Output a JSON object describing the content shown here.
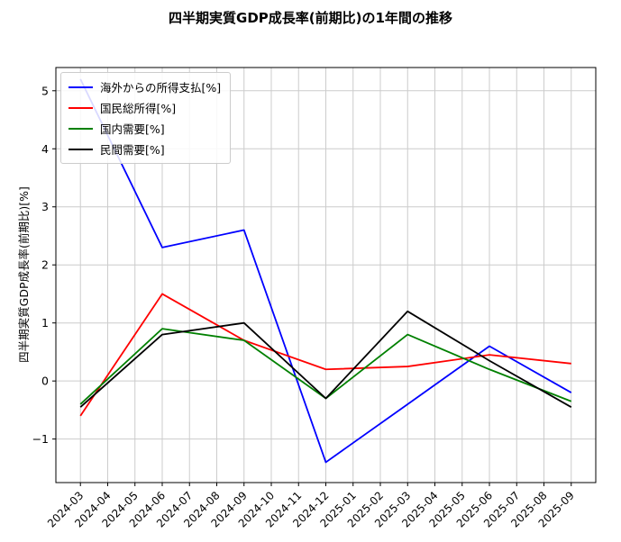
{
  "chart_data": {
    "type": "line",
    "title": "四半期実質GDP成長率(前期比)の1年間の推移",
    "xlabel": "",
    "ylabel": "四半期実質GDP成長率(前期比)[%]",
    "grid": true,
    "legend_position": "upper-left",
    "ylim": [
      -1.75,
      5.4
    ],
    "y_ticks": [
      -1,
      0,
      1,
      2,
      3,
      4,
      5
    ],
    "y_tick_labels": [
      "−1",
      "0",
      "1",
      "2",
      "3",
      "4",
      "5"
    ],
    "x_tick_labels": [
      "2024-03",
      "2024-04",
      "2024-05",
      "2024-06",
      "2024-07",
      "2024-08",
      "2024-09",
      "2024-10",
      "2024-11",
      "2024-12",
      "2025-01",
      "2025-02",
      "2025-03",
      "2025-04",
      "2025-05",
      "2025-06",
      "2025-07",
      "2025-08",
      "2025-09"
    ],
    "data_x_indices": [
      0,
      3,
      6,
      9,
      12,
      15,
      18
    ],
    "data_x_labels": [
      "2024-03",
      "2024-06",
      "2024-09",
      "2024-12",
      "2025-03",
      "2025-06",
      "2025-09"
    ],
    "series": [
      {
        "name": "海外からの所得支払[%]",
        "color": "#0000ff",
        "values": [
          5.2,
          2.3,
          2.6,
          -1.4,
          -0.4,
          0.6,
          -0.2
        ]
      },
      {
        "name": "国民総所得[%]",
        "color": "#ff0000",
        "values": [
          -0.6,
          1.5,
          0.7,
          0.2,
          0.25,
          0.45,
          0.3
        ]
      },
      {
        "name": "国内需要[%]",
        "color": "#008000",
        "values": [
          -0.4,
          0.9,
          0.7,
          -0.3,
          0.8,
          0.2,
          -0.35
        ]
      },
      {
        "name": "民間需要[%]",
        "color": "#000000",
        "values": [
          -0.45,
          0.8,
          1.0,
          -0.3,
          1.2,
          0.35,
          -0.45
        ]
      }
    ],
    "axis_color": "#000000",
    "grid_color": "#cccccc"
  }
}
